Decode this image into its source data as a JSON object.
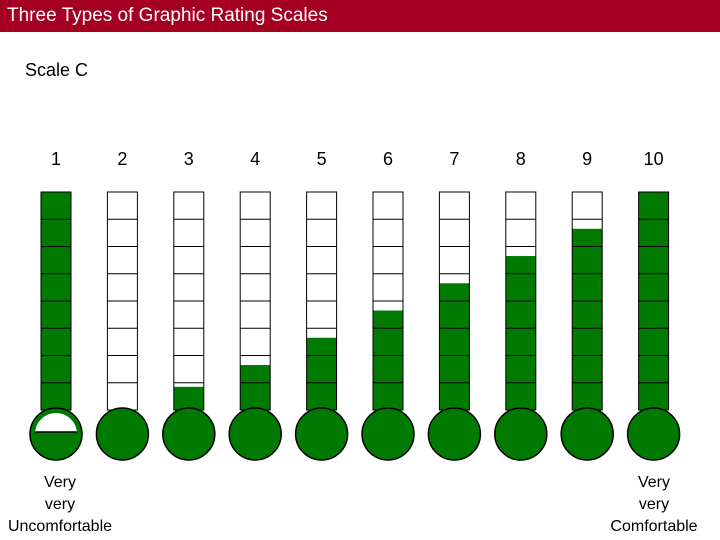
{
  "title": "Three Types of Graphic Rating Scales",
  "scale_label": "Scale C",
  "colors": {
    "title_bar": "#a50021",
    "fill": "#007a00",
    "outline": "#000000",
    "empty": "#ffffff"
  },
  "scale_points": [
    {
      "label": "1",
      "level": 8
    },
    {
      "label": "2",
      "level": 0
    },
    {
      "label": "3",
      "level": 0.85
    },
    {
      "label": "4",
      "level": 1.65
    },
    {
      "label": "5",
      "level": 2.65
    },
    {
      "label": "6",
      "level": 3.65
    },
    {
      "label": "7",
      "level": 4.65
    },
    {
      "label": "8",
      "level": 5.65
    },
    {
      "label": "9",
      "level": 6.65
    },
    {
      "label": "10",
      "level": 8
    }
  ],
  "segments_per_tube": 8,
  "left_anchor": {
    "line1": "Very",
    "line2": "very",
    "line3": "Uncomfortable"
  },
  "right_anchor": {
    "line1": "Very",
    "line2": "very",
    "line3": "Comfortable"
  }
}
